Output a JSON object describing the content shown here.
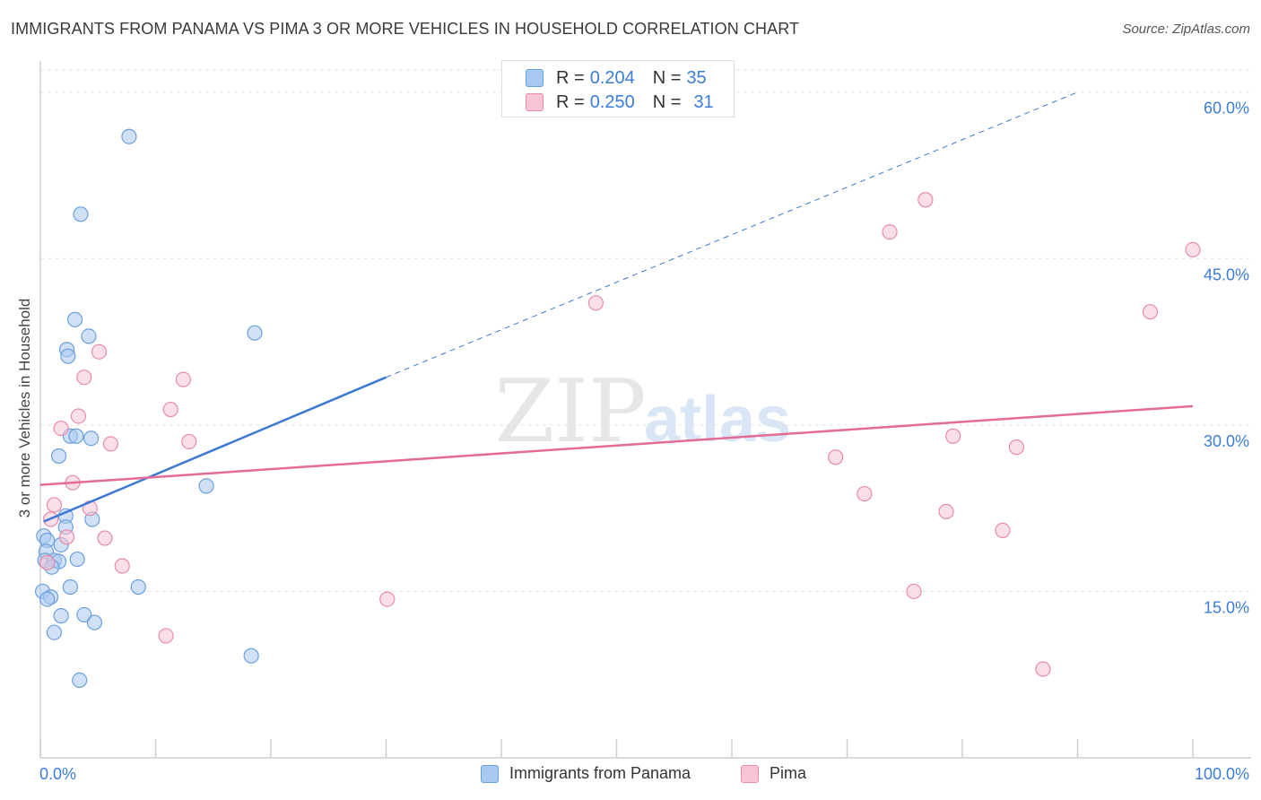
{
  "title": "IMMIGRANTS FROM PANAMA VS PIMA 3 OR MORE VEHICLES IN HOUSEHOLD CORRELATION CHART",
  "source": "Source: ZipAtlas.com",
  "watermark": "ZIPatlas",
  "legend_top": [
    {
      "r_label": "R =",
      "r_value": "0.204",
      "n_label": "N =",
      "n_value": "35",
      "color": "#a9c8f0",
      "border": "#6a9fdc"
    },
    {
      "r_label": "R =",
      "r_value": "0.250",
      "n_label": "N =",
      "n_value": "31",
      "color": "#f8c5d6",
      "border": "#e98aaa"
    }
  ],
  "legend_bottom": [
    {
      "label": "Immigrants from Panama",
      "color": "#a9c8f0",
      "border": "#6a9fdc"
    },
    {
      "label": "Pima",
      "color": "#f8c5d6",
      "border": "#e98aaa"
    }
  ],
  "chart_data": {
    "type": "scatter",
    "xlabel": "",
    "ylabel": "3 or more Vehicles in Household",
    "xlim": [
      0,
      100
    ],
    "ylim": [
      0,
      62
    ],
    "x_tick_labels": [
      "0.0%",
      "100.0%"
    ],
    "y_ticks": [
      15,
      30,
      45,
      60
    ],
    "y_tick_labels": [
      "15.0%",
      "30.0%",
      "45.0%",
      "60.0%"
    ],
    "grid": true,
    "series": [
      {
        "name": "Immigrants from Panama",
        "color": "#a9c8f0",
        "stroke": "#6a9fdc",
        "trend_color": "#3a78d4",
        "trend": {
          "x0": 0.3,
          "y0": 21.3,
          "x1": 30.0,
          "y1": 34.3,
          "x_dash_end": 90.0,
          "y_dash_end": 60.0
        },
        "points": [
          [
            7.7,
            56.0
          ],
          [
            3.5,
            49.0
          ],
          [
            3.0,
            39.5
          ],
          [
            4.2,
            38.0
          ],
          [
            2.3,
            36.8
          ],
          [
            2.4,
            36.2
          ],
          [
            2.6,
            29.0
          ],
          [
            3.1,
            29.0
          ],
          [
            4.4,
            28.8
          ],
          [
            1.6,
            27.2
          ],
          [
            18.6,
            38.3
          ],
          [
            14.4,
            24.5
          ],
          [
            2.2,
            21.8
          ],
          [
            4.5,
            21.5
          ],
          [
            2.2,
            20.8
          ],
          [
            0.3,
            20.0
          ],
          [
            0.6,
            19.6
          ],
          [
            1.8,
            19.2
          ],
          [
            0.5,
            18.6
          ],
          [
            0.4,
            17.8
          ],
          [
            1.2,
            17.8
          ],
          [
            1.6,
            17.7
          ],
          [
            3.2,
            17.9
          ],
          [
            1.0,
            17.2
          ],
          [
            0.2,
            15.0
          ],
          [
            0.9,
            14.5
          ],
          [
            0.6,
            14.3
          ],
          [
            2.6,
            15.4
          ],
          [
            8.5,
            15.4
          ],
          [
            1.8,
            12.8
          ],
          [
            3.8,
            12.9
          ],
          [
            4.7,
            12.2
          ],
          [
            1.2,
            11.3
          ],
          [
            18.3,
            9.2
          ],
          [
            3.4,
            7.0
          ]
        ]
      },
      {
        "name": "Pima",
        "color": "#f8c5d6",
        "stroke": "#e98aaa",
        "trend_color": "#e36b94",
        "trend": {
          "x0": 0.0,
          "y0": 24.6,
          "x1": 100.0,
          "y1": 31.7
        },
        "points": [
          [
            76.8,
            50.3
          ],
          [
            73.7,
            47.4
          ],
          [
            100.0,
            45.8
          ],
          [
            96.3,
            40.2
          ],
          [
            48.2,
            41.0
          ],
          [
            5.1,
            36.6
          ],
          [
            3.8,
            34.3
          ],
          [
            12.4,
            34.1
          ],
          [
            11.3,
            31.4
          ],
          [
            3.3,
            30.8
          ],
          [
            1.8,
            29.7
          ],
          [
            12.9,
            28.5
          ],
          [
            6.1,
            28.3
          ],
          [
            69.0,
            27.1
          ],
          [
            79.2,
            29.0
          ],
          [
            84.7,
            28.0
          ],
          [
            2.8,
            24.8
          ],
          [
            71.5,
            23.8
          ],
          [
            1.2,
            22.8
          ],
          [
            4.3,
            22.5
          ],
          [
            0.9,
            21.5
          ],
          [
            78.6,
            22.2
          ],
          [
            83.5,
            20.5
          ],
          [
            2.3,
            19.9
          ],
          [
            5.6,
            19.8
          ],
          [
            7.1,
            17.3
          ],
          [
            0.6,
            17.6
          ],
          [
            30.1,
            14.3
          ],
          [
            75.8,
            15.0
          ],
          [
            10.9,
            11.0
          ],
          [
            87.0,
            8.0
          ]
        ]
      }
    ]
  }
}
